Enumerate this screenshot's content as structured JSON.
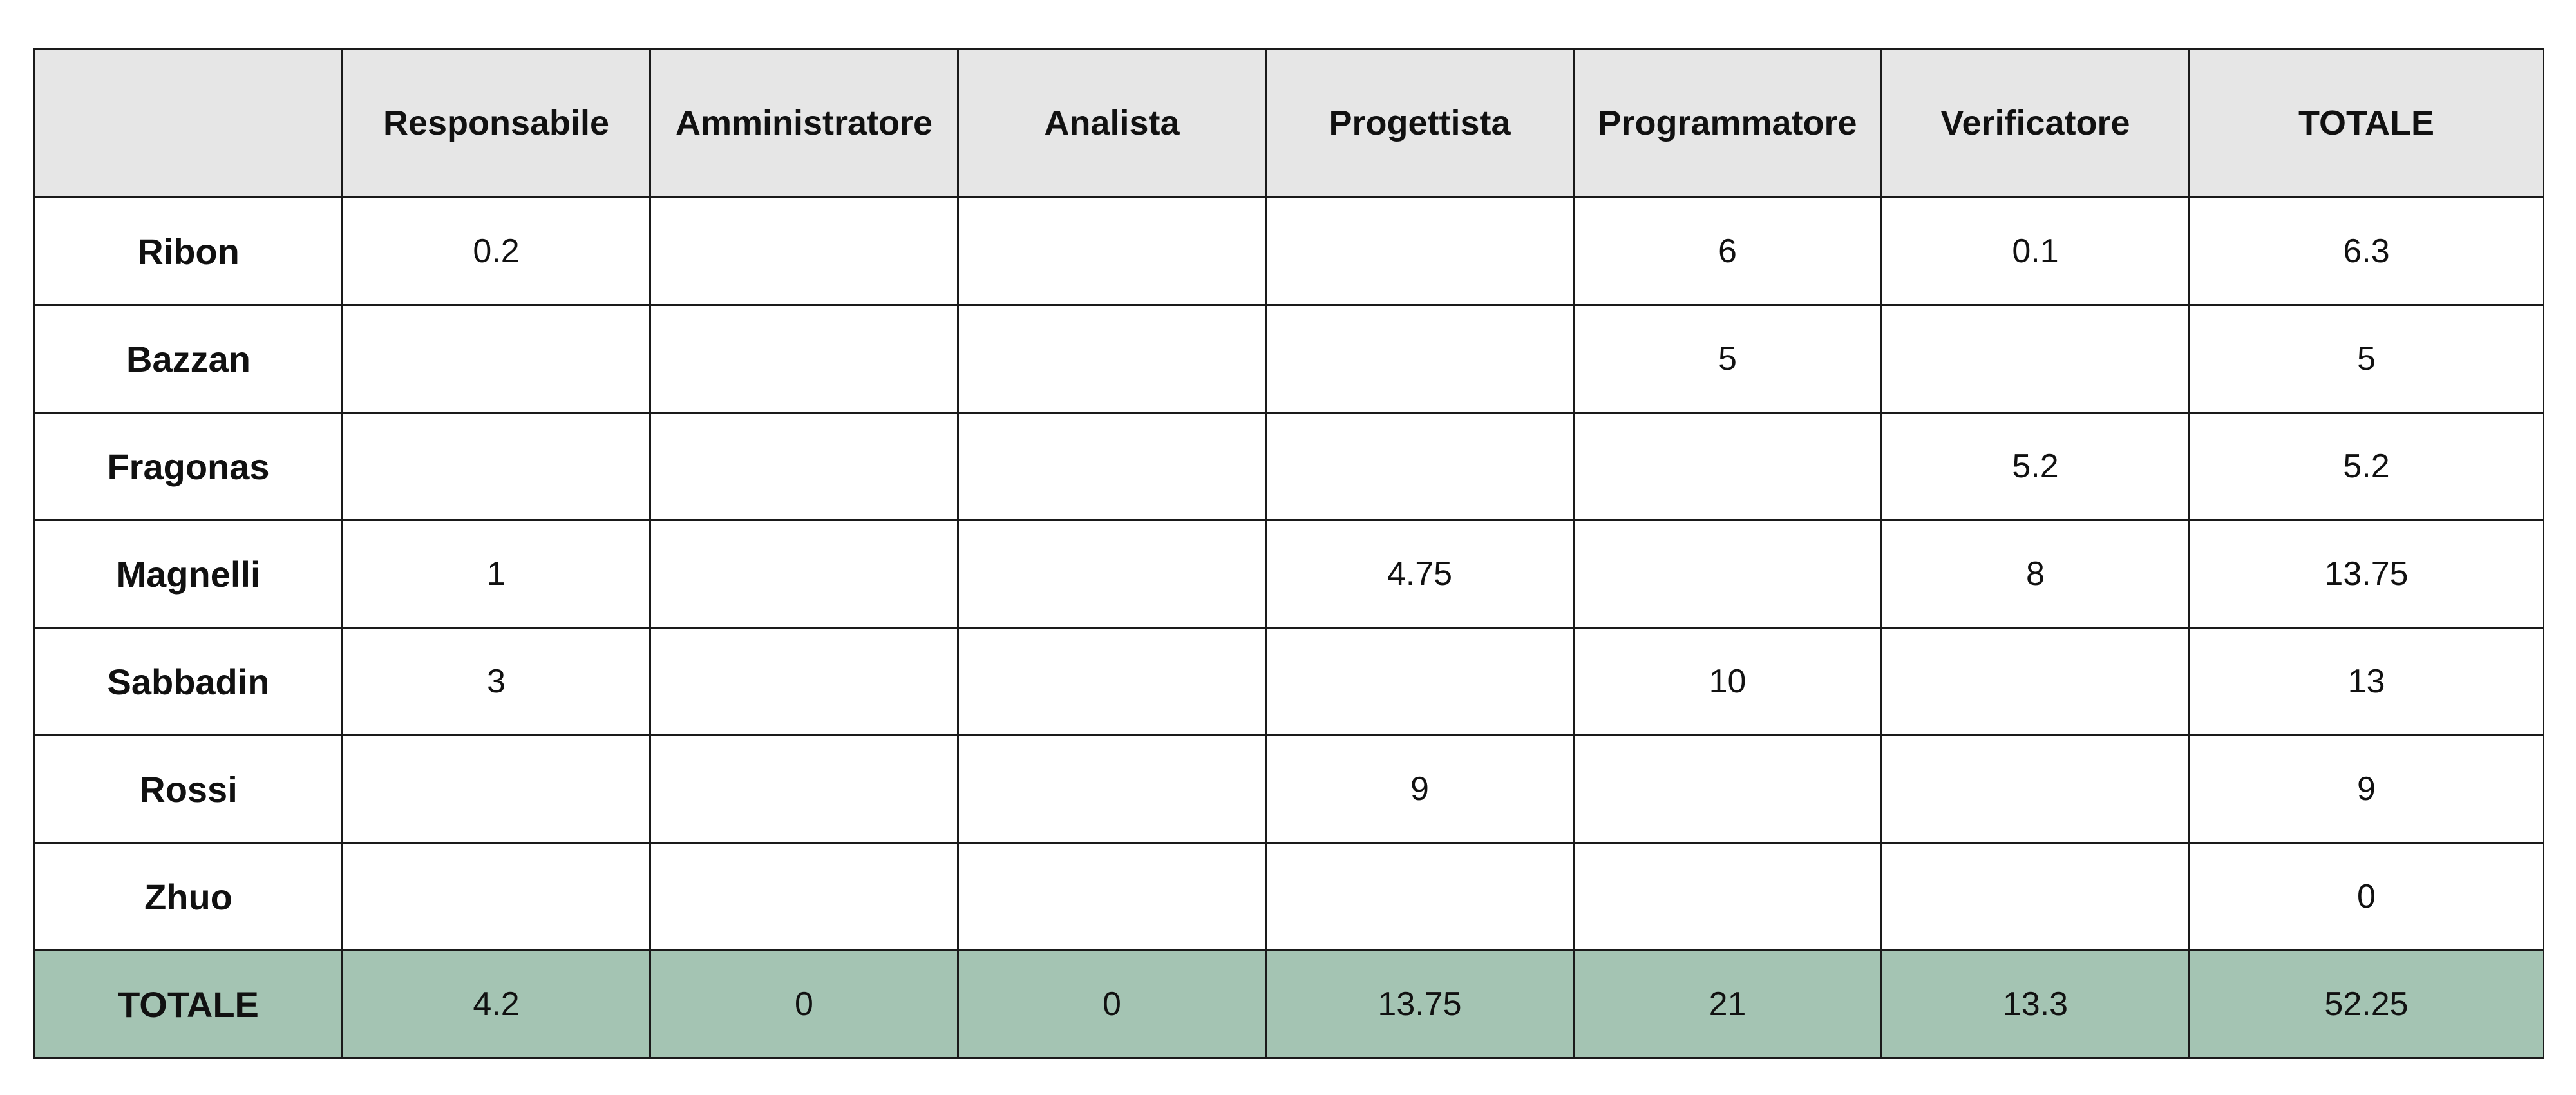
{
  "table": {
    "corner": "",
    "columns": [
      "Responsabile",
      "Amministratore",
      "Analista",
      "Progettista",
      "Programmatore",
      "Verificatore",
      "TOTALE"
    ],
    "rows": [
      {
        "name": "Ribon",
        "cells": [
          "0.2",
          "",
          "",
          "",
          "6",
          "0.1",
          "6.3"
        ]
      },
      {
        "name": "Bazzan",
        "cells": [
          "",
          "",
          "",
          "",
          "5",
          "",
          "5"
        ]
      },
      {
        "name": "Fragonas",
        "cells": [
          "",
          "",
          "",
          "",
          "",
          "5.2",
          "5.2"
        ]
      },
      {
        "name": "Magnelli",
        "cells": [
          "1",
          "",
          "",
          "4.75",
          "",
          "8",
          "13.75"
        ]
      },
      {
        "name": "Sabbadin",
        "cells": [
          "3",
          "",
          "",
          "",
          "10",
          "",
          "13"
        ]
      },
      {
        "name": "Rossi",
        "cells": [
          "",
          "",
          "",
          "9",
          "",
          "",
          "9"
        ]
      },
      {
        "name": "Zhuo",
        "cells": [
          "",
          "",
          "",
          "",
          "",
          "",
          "0"
        ]
      }
    ],
    "total": {
      "name": "TOTALE",
      "cells": [
        "4.2",
        "0",
        "0",
        "13.75",
        "21",
        "13.3",
        "52.25"
      ]
    }
  },
  "colors": {
    "header_bg": "#e6e6e6",
    "total_row_bg": "#a4c4b3",
    "border": "#1a1a1a"
  }
}
